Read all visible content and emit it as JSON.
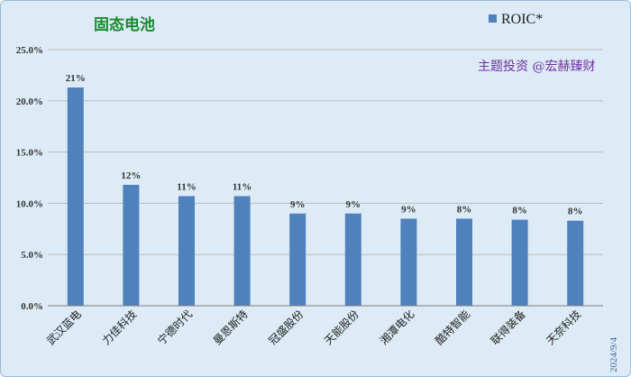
{
  "chart_data": {
    "type": "bar",
    "title": "固态电池",
    "watermark": "主题投资 @宏赫臻财",
    "date_stamp": "2024/9/4",
    "legend": {
      "entries": [
        "ROIC*"
      ],
      "position": "top-right"
    },
    "categories": [
      "武汉蓝电",
      "力佳科技",
      "宁德时代",
      "曼恩斯特",
      "冠盛股份",
      "天能股份",
      "湘潭电化",
      "酷特智能",
      "联得装备",
      "天奈科技"
    ],
    "series": [
      {
        "name": "ROIC*",
        "color": "#4f81bd",
        "values": [
          21.3,
          11.8,
          10.7,
          10.7,
          9.0,
          9.0,
          8.5,
          8.5,
          8.4,
          8.3
        ],
        "data_labels": [
          "21%",
          "12%",
          "11%",
          "11%",
          "9%",
          "9%",
          "9%",
          "8%",
          "8%",
          "8%"
        ]
      }
    ],
    "y_ticks": [
      "0.0%",
      "5.0%",
      "10.0%",
      "15.0%",
      "20.0%",
      "25.0%"
    ],
    "ylim": [
      0,
      25
    ],
    "grid": true,
    "xlabel": "",
    "ylabel": ""
  }
}
